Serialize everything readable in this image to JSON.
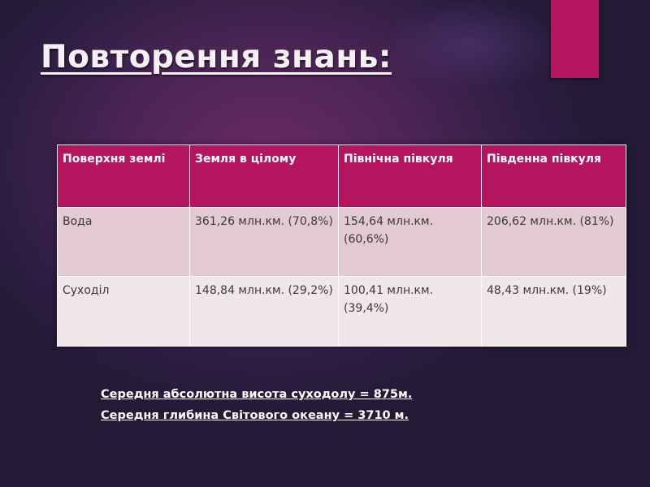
{
  "slide": {
    "title": "Повторення знань:",
    "accent_color": "#b5145f"
  },
  "table": {
    "headers": [
      "Поверхня землі",
      "Земля в цілому",
      "Північна півкуля",
      "Південна півкуля"
    ],
    "rows": [
      [
        "Вода",
        "361,26 млн.км. (70,8%)",
        "154,64 млн.км. (60,6%)",
        "206,62 млн.км. (81%)"
      ],
      [
        "Суходіл",
        "148,84 млн.км. (29,2%)",
        "100,41 млн.км. (39,4%)",
        "48,43 млн.км. (19%)"
      ]
    ]
  },
  "notes": [
    "Середня абсолютна висота суходолу = 875м.",
    "Середня глибина Світового океану = 3710 м."
  ]
}
